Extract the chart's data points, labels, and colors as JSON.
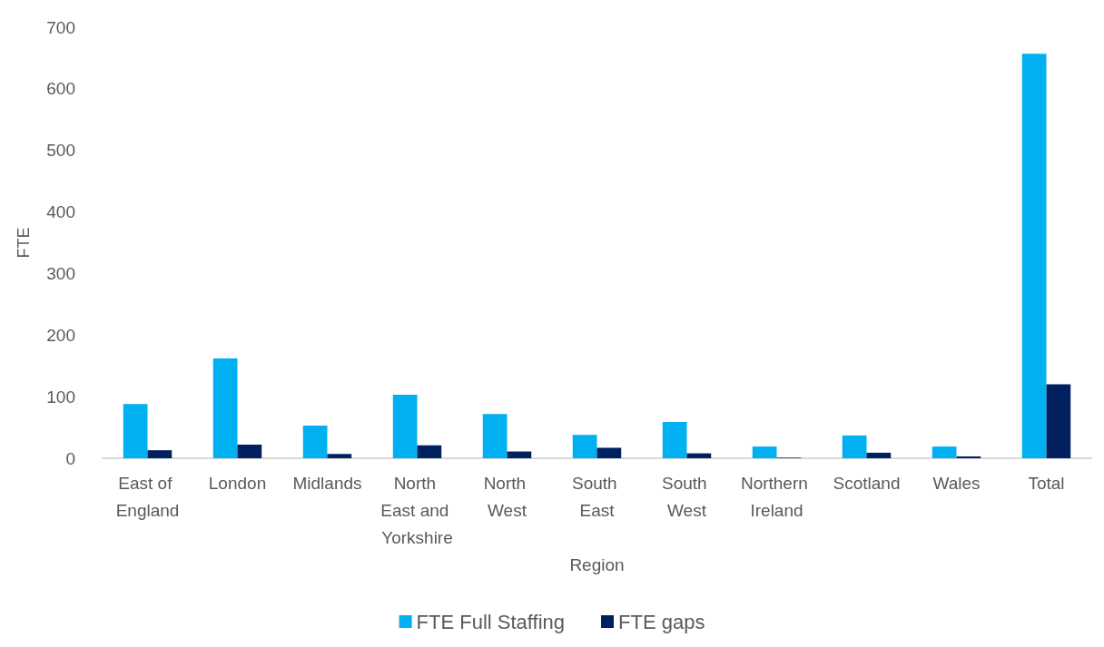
{
  "chart_data": {
    "type": "bar",
    "xlabel": "Region",
    "ylabel": "FTE",
    "categories": [
      "East of England",
      "London",
      "Midlands",
      "North East and Yorkshire",
      "North West",
      "South East",
      "South West",
      "Northern Ireland",
      "Scotland",
      "Wales",
      "Total"
    ],
    "series": [
      {
        "name": "FTE Full Staffing",
        "color": "#00b0f0",
        "values": [
          88,
          162,
          53,
          103,
          72,
          38,
          59,
          19,
          37,
          19,
          657
        ]
      },
      {
        "name": "FTE gaps",
        "color": "#002060",
        "values": [
          13,
          22,
          7,
          21,
          11,
          17,
          8,
          1,
          9,
          3,
          120
        ]
      }
    ],
    "ylim": [
      0,
      700
    ],
    "yticks": [
      0,
      100,
      200,
      300,
      400,
      500,
      600,
      700
    ],
    "legend": "bottom"
  }
}
